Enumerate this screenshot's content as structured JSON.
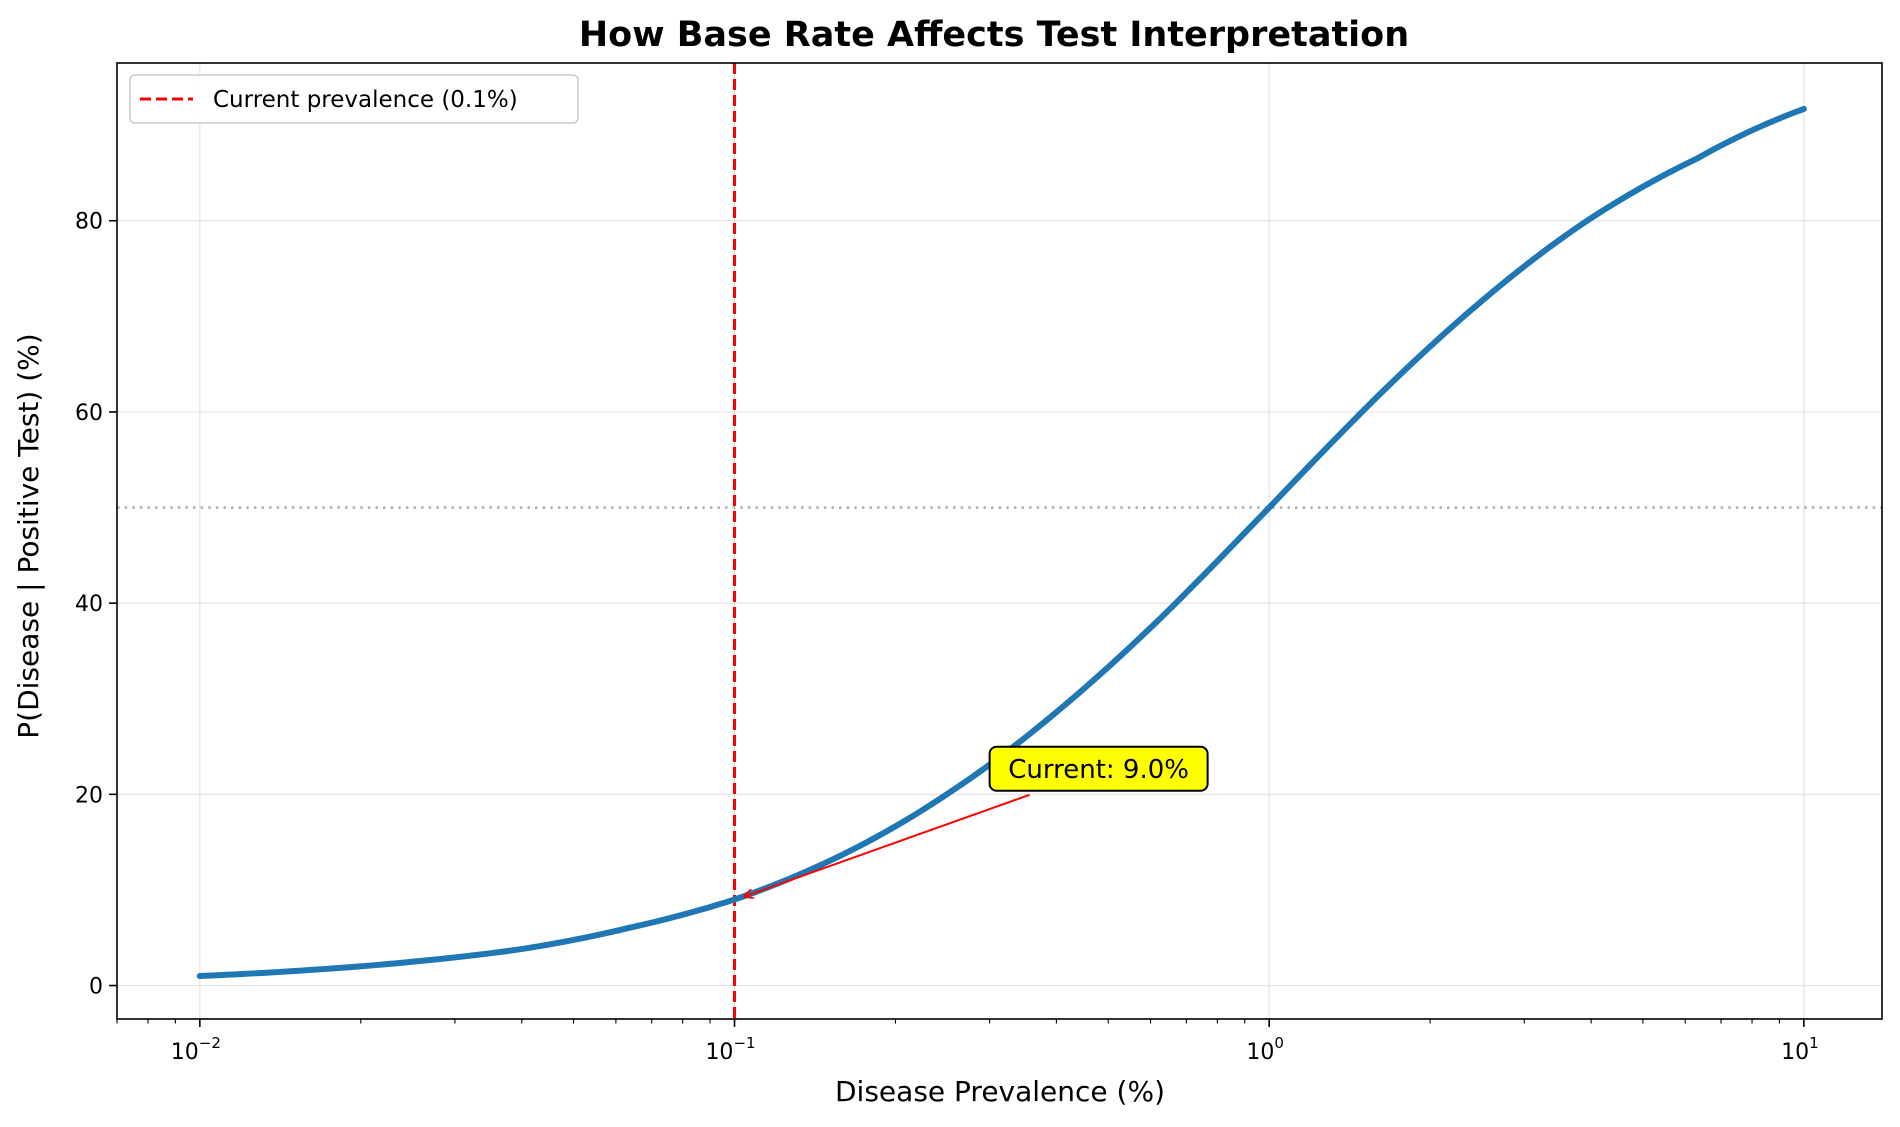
{
  "chart_data": {
    "type": "line",
    "title": "How Base Rate Affects Test Interpretation",
    "xlabel": "Disease Prevalence (%)",
    "ylabel": "P(Disease | Positive Test) (%)",
    "xscale": "log",
    "xlim": [
      0.007,
      14
    ],
    "ylim": [
      -3.5,
      96.5
    ],
    "grid": true,
    "legend_position": "top-left",
    "x_ticks": [
      {
        "base": "10",
        "exp": "−2",
        "value": 0.01
      },
      {
        "base": "10",
        "exp": "−1",
        "value": 0.1
      },
      {
        "base": "10",
        "exp": "0",
        "value": 1
      },
      {
        "base": "10",
        "exp": "1",
        "value": 10
      }
    ],
    "y_ticks": [
      0,
      20,
      40,
      60,
      80
    ],
    "y_tick_labels": [
      "0",
      "20",
      "40",
      "60",
      "80"
    ],
    "series": [
      {
        "color": "#1f77b4",
        "x": [
          0.01,
          0.0158,
          0.0251,
          0.0398,
          0.0631,
          0.1,
          0.158,
          0.251,
          0.398,
          0.631,
          1,
          1.58,
          2.51,
          3.98,
          6.31,
          10
        ],
        "y": [
          1.0,
          1.6,
          2.5,
          3.8,
          6.0,
          9.0,
          13.6,
          20.1,
          28.5,
          38.6,
          50.0,
          61.4,
          71.7,
          80.2,
          86.5,
          91.7
        ]
      }
    ],
    "reference_lines": [
      {
        "orientation": "vertical",
        "x": 0.1,
        "style": "dashed",
        "color": "#ff0000",
        "label": "Current prevalence (0.1%)"
      },
      {
        "orientation": "horizontal",
        "y": 50,
        "style": "dotted",
        "color": "#b3b3b3"
      }
    ],
    "annotation": {
      "text": "Current: 9.0%",
      "point": {
        "x": 0.1,
        "y": 9.0
      },
      "text_at": {
        "x": 0.3,
        "y": 21
      },
      "box_color": "#ffff00",
      "arrow_color": "#ff0000"
    }
  }
}
